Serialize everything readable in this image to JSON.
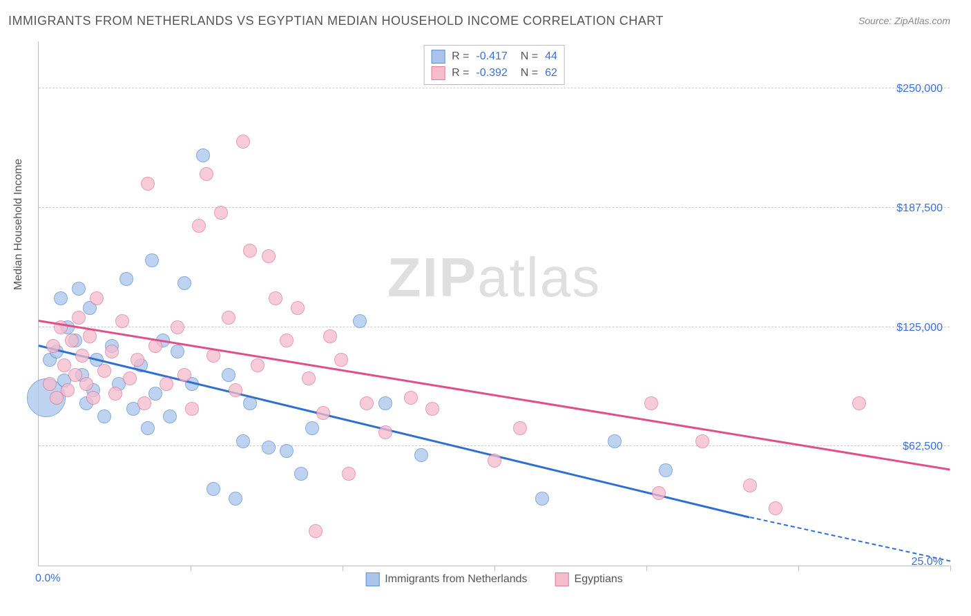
{
  "title": "IMMIGRANTS FROM NETHERLANDS VS EGYPTIAN MEDIAN HOUSEHOLD INCOME CORRELATION CHART",
  "source": "Source: ZipAtlas.com",
  "watermark_bold": "ZIP",
  "watermark_light": "atlas",
  "chart": {
    "type": "scatter",
    "ylabel": "Median Household Income",
    "xmin": 0,
    "xmax": 25,
    "ymin": 0,
    "ymax": 275000,
    "xtick_min_label": "0.0%",
    "xtick_max_label": "25.0%",
    "yticks": [
      {
        "v": 62500,
        "label": "$62,500"
      },
      {
        "v": 125000,
        "label": "$125,000"
      },
      {
        "v": 187500,
        "label": "$187,500"
      },
      {
        "v": 250000,
        "label": "$250,000"
      }
    ],
    "xgrid_ticks": [
      4.17,
      8.33,
      12.5,
      16.67,
      20.83,
      25
    ],
    "grid_color": "#cccccc",
    "tick_label_color": "#3b6fd8",
    "background_color": "#ffffff",
    "series": [
      {
        "name": "Immigrants from Netherlands",
        "color_fill": "#a9c5ec",
        "color_stroke": "#5a8fd6",
        "trend_color": "#2f6fd0",
        "R": "-0.417",
        "N": "44",
        "trend": {
          "x1": 0,
          "y1": 115000,
          "x2": 19.5,
          "y2": 25000,
          "dash_to_x": 25,
          "dash_to_y": 2000
        },
        "points": [
          {
            "x": 0.2,
            "y": 88000,
            "r": 28
          },
          {
            "x": 0.3,
            "y": 108000,
            "r": 10
          },
          {
            "x": 0.5,
            "y": 112000,
            "r": 10
          },
          {
            "x": 0.6,
            "y": 140000,
            "r": 10
          },
          {
            "x": 0.7,
            "y": 97000,
            "r": 10
          },
          {
            "x": 0.8,
            "y": 125000,
            "r": 10
          },
          {
            "x": 1.0,
            "y": 118000,
            "r": 10
          },
          {
            "x": 1.1,
            "y": 145000,
            "r": 10
          },
          {
            "x": 1.2,
            "y": 100000,
            "r": 10
          },
          {
            "x": 1.3,
            "y": 85000,
            "r": 10
          },
          {
            "x": 1.4,
            "y": 135000,
            "r": 10
          },
          {
            "x": 1.5,
            "y": 92000,
            "r": 10
          },
          {
            "x": 1.6,
            "y": 108000,
            "r": 10
          },
          {
            "x": 1.8,
            "y": 78000,
            "r": 10
          },
          {
            "x": 2.0,
            "y": 115000,
            "r": 10
          },
          {
            "x": 2.2,
            "y": 95000,
            "r": 10
          },
          {
            "x": 2.4,
            "y": 150000,
            "r": 10
          },
          {
            "x": 2.6,
            "y": 82000,
            "r": 10
          },
          {
            "x": 2.8,
            "y": 105000,
            "r": 10
          },
          {
            "x": 3.0,
            "y": 72000,
            "r": 10
          },
          {
            "x": 3.1,
            "y": 160000,
            "r": 10
          },
          {
            "x": 3.2,
            "y": 90000,
            "r": 10
          },
          {
            "x": 3.4,
            "y": 118000,
            "r": 10
          },
          {
            "x": 3.6,
            "y": 78000,
            "r": 10
          },
          {
            "x": 3.8,
            "y": 112000,
            "r": 10
          },
          {
            "x": 4.0,
            "y": 148000,
            "r": 10
          },
          {
            "x": 4.2,
            "y": 95000,
            "r": 10
          },
          {
            "x": 4.5,
            "y": 215000,
            "r": 10
          },
          {
            "x": 4.8,
            "y": 40000,
            "r": 10
          },
          {
            "x": 5.2,
            "y": 100000,
            "r": 10
          },
          {
            "x": 5.4,
            "y": 35000,
            "r": 10
          },
          {
            "x": 5.6,
            "y": 65000,
            "r": 10
          },
          {
            "x": 5.8,
            "y": 85000,
            "r": 10
          },
          {
            "x": 6.3,
            "y": 62000,
            "r": 10
          },
          {
            "x": 6.8,
            "y": 60000,
            "r": 10
          },
          {
            "x": 7.2,
            "y": 48000,
            "r": 10
          },
          {
            "x": 7.5,
            "y": 72000,
            "r": 10
          },
          {
            "x": 8.8,
            "y": 128000,
            "r": 10
          },
          {
            "x": 9.5,
            "y": 85000,
            "r": 10
          },
          {
            "x": 10.5,
            "y": 58000,
            "r": 10
          },
          {
            "x": 13.8,
            "y": 35000,
            "r": 10
          },
          {
            "x": 15.8,
            "y": 65000,
            "r": 10
          },
          {
            "x": 17.2,
            "y": 50000,
            "r": 10
          }
        ]
      },
      {
        "name": "Egyptians",
        "color_fill": "#f5bccc",
        "color_stroke": "#e078a0",
        "trend_color": "#e05088",
        "R": "-0.392",
        "N": "62",
        "trend": {
          "x1": 0,
          "y1": 128000,
          "x2": 25,
          "y2": 50000
        },
        "points": [
          {
            "x": 0.3,
            "y": 95000,
            "r": 10
          },
          {
            "x": 0.4,
            "y": 115000,
            "r": 10
          },
          {
            "x": 0.5,
            "y": 88000,
            "r": 10
          },
          {
            "x": 0.6,
            "y": 125000,
            "r": 10
          },
          {
            "x": 0.7,
            "y": 105000,
            "r": 10
          },
          {
            "x": 0.8,
            "y": 92000,
            "r": 10
          },
          {
            "x": 0.9,
            "y": 118000,
            "r": 10
          },
          {
            "x": 1.0,
            "y": 100000,
            "r": 10
          },
          {
            "x": 1.1,
            "y": 130000,
            "r": 10
          },
          {
            "x": 1.2,
            "y": 110000,
            "r": 10
          },
          {
            "x": 1.3,
            "y": 95000,
            "r": 10
          },
          {
            "x": 1.4,
            "y": 120000,
            "r": 10
          },
          {
            "x": 1.5,
            "y": 88000,
            "r": 10
          },
          {
            "x": 1.6,
            "y": 140000,
            "r": 10
          },
          {
            "x": 1.8,
            "y": 102000,
            "r": 10
          },
          {
            "x": 2.0,
            "y": 112000,
            "r": 10
          },
          {
            "x": 2.1,
            "y": 90000,
            "r": 10
          },
          {
            "x": 2.3,
            "y": 128000,
            "r": 10
          },
          {
            "x": 2.5,
            "y": 98000,
            "r": 10
          },
          {
            "x": 2.7,
            "y": 108000,
            "r": 10
          },
          {
            "x": 2.9,
            "y": 85000,
            "r": 10
          },
          {
            "x": 3.0,
            "y": 200000,
            "r": 10
          },
          {
            "x": 3.2,
            "y": 115000,
            "r": 10
          },
          {
            "x": 3.5,
            "y": 95000,
            "r": 10
          },
          {
            "x": 3.8,
            "y": 125000,
            "r": 10
          },
          {
            "x": 4.0,
            "y": 100000,
            "r": 10
          },
          {
            "x": 4.2,
            "y": 82000,
            "r": 10
          },
          {
            "x": 4.4,
            "y": 178000,
            "r": 10
          },
          {
            "x": 4.6,
            "y": 205000,
            "r": 10
          },
          {
            "x": 4.8,
            "y": 110000,
            "r": 10
          },
          {
            "x": 5.0,
            "y": 185000,
            "r": 10
          },
          {
            "x": 5.2,
            "y": 130000,
            "r": 10
          },
          {
            "x": 5.4,
            "y": 92000,
            "r": 10
          },
          {
            "x": 5.6,
            "y": 222000,
            "r": 10
          },
          {
            "x": 5.8,
            "y": 165000,
            "r": 10
          },
          {
            "x": 6.0,
            "y": 105000,
            "r": 10
          },
          {
            "x": 6.3,
            "y": 162000,
            "r": 10
          },
          {
            "x": 6.5,
            "y": 140000,
            "r": 10
          },
          {
            "x": 6.8,
            "y": 118000,
            "r": 10
          },
          {
            "x": 7.1,
            "y": 135000,
            "r": 10
          },
          {
            "x": 7.4,
            "y": 98000,
            "r": 10
          },
          {
            "x": 7.6,
            "y": 18000,
            "r": 10
          },
          {
            "x": 7.8,
            "y": 80000,
            "r": 10
          },
          {
            "x": 8.0,
            "y": 120000,
            "r": 10
          },
          {
            "x": 8.3,
            "y": 108000,
            "r": 10
          },
          {
            "x": 8.5,
            "y": 48000,
            "r": 10
          },
          {
            "x": 9.0,
            "y": 85000,
            "r": 10
          },
          {
            "x": 9.5,
            "y": 70000,
            "r": 10
          },
          {
            "x": 10.2,
            "y": 88000,
            "r": 10
          },
          {
            "x": 10.8,
            "y": 82000,
            "r": 10
          },
          {
            "x": 12.5,
            "y": 55000,
            "r": 10
          },
          {
            "x": 13.2,
            "y": 72000,
            "r": 10
          },
          {
            "x": 16.8,
            "y": 85000,
            "r": 10
          },
          {
            "x": 17.0,
            "y": 38000,
            "r": 10
          },
          {
            "x": 18.2,
            "y": 65000,
            "r": 10
          },
          {
            "x": 19.5,
            "y": 42000,
            "r": 10
          },
          {
            "x": 20.2,
            "y": 30000,
            "r": 10
          },
          {
            "x": 22.5,
            "y": 85000,
            "r": 10
          }
        ]
      }
    ]
  }
}
